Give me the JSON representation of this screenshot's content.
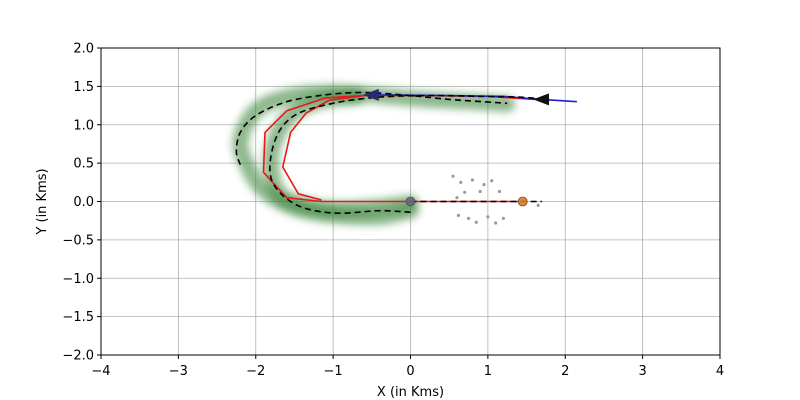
{
  "chart_data": {
    "type": "line",
    "xlabel": "X (in Kms)",
    "ylabel": "Y (in Kms)",
    "xlim": [
      -4,
      4
    ],
    "ylim": [
      -2,
      2
    ],
    "xticks": [
      -4,
      -3,
      -2,
      -1,
      0,
      1,
      2,
      3,
      4
    ],
    "yticks": [
      -2.0,
      -1.5,
      -1.0,
      -0.5,
      0.0,
      0.5,
      1.0,
      1.5,
      2.0
    ],
    "xtick_labels": [
      "−4",
      "−3",
      "−2",
      "−1",
      "0",
      "1",
      "2",
      "3",
      "4"
    ],
    "ytick_labels": [
      "−2.0",
      "−1.5",
      "−1.0",
      "−0.5",
      "0.0",
      "0.5",
      "1.0",
      "1.5",
      "2.0"
    ],
    "grid": true,
    "series": [
      {
        "style": "green-band",
        "color": "#2e7d32",
        "points": [
          [
            0.0,
            -0.12
          ],
          [
            -0.4,
            -0.2
          ],
          [
            -1.0,
            -0.18
          ],
          [
            -1.5,
            -0.08
          ],
          [
            -1.9,
            0.15
          ],
          [
            -2.1,
            0.45
          ],
          [
            -2.2,
            0.75
          ],
          [
            -2.1,
            1.05
          ],
          [
            -1.9,
            1.25
          ],
          [
            -1.5,
            1.38
          ],
          [
            -1.0,
            1.42
          ],
          [
            -0.4,
            1.38
          ],
          [
            0.2,
            1.33
          ],
          [
            0.8,
            1.3
          ],
          [
            1.25,
            1.27
          ]
        ]
      },
      {
        "style": "green-band",
        "color": "#2e7d32",
        "points": [
          [
            0.0,
            -0.02
          ],
          [
            -0.5,
            -0.08
          ],
          [
            -1.0,
            -0.1
          ],
          [
            -1.4,
            -0.04
          ],
          [
            -1.7,
            0.1
          ],
          [
            -1.8,
            0.45
          ],
          [
            -1.75,
            0.8
          ],
          [
            -1.55,
            1.12
          ],
          [
            -1.2,
            1.3
          ],
          [
            -0.7,
            1.37
          ]
        ]
      },
      {
        "style": "dashed",
        "color": "#000000",
        "points": [
          [
            0.0,
            -0.14
          ],
          [
            -0.4,
            -0.12
          ],
          [
            -1.0,
            -0.15
          ],
          [
            -1.5,
            -0.03
          ],
          [
            -1.8,
            0.3
          ],
          [
            -1.75,
            0.8
          ],
          [
            -1.5,
            1.12
          ],
          [
            -1.0,
            1.28
          ],
          [
            -0.4,
            1.36
          ],
          [
            0.3,
            1.38
          ],
          [
            0.9,
            1.37
          ],
          [
            1.4,
            1.36
          ],
          [
            1.75,
            1.33
          ]
        ]
      },
      {
        "style": "dashed",
        "color": "#000000",
        "points": [
          [
            -2.2,
            0.48
          ],
          [
            -2.25,
            0.65
          ],
          [
            -2.2,
            0.9
          ],
          [
            -2.0,
            1.12
          ],
          [
            -1.6,
            1.3
          ],
          [
            -1.1,
            1.39
          ],
          [
            -0.6,
            1.42
          ],
          [
            0.0,
            1.38
          ],
          [
            0.5,
            1.33
          ],
          [
            1.25,
            1.28
          ]
        ]
      },
      {
        "style": "dashed",
        "color": "#000000",
        "points": [
          [
            0.0,
            0.0
          ],
          [
            0.5,
            0.0
          ],
          [
            1.0,
            0.0
          ],
          [
            1.4,
            0.0
          ],
          [
            1.7,
            0.0
          ]
        ]
      },
      {
        "style": "solid",
        "color": "#e41a1c",
        "points": [
          [
            0.0,
            0.0
          ],
          [
            -0.5,
            0.0
          ],
          [
            -1.15,
            0.0
          ],
          [
            -1.6,
            0.05
          ],
          [
            -1.9,
            0.38
          ],
          [
            -1.88,
            0.9
          ],
          [
            -1.6,
            1.18
          ],
          [
            -1.1,
            1.35
          ],
          [
            -0.6,
            1.38
          ],
          [
            0.2,
            1.38
          ],
          [
            1.0,
            1.37
          ],
          [
            1.6,
            1.33
          ]
        ]
      },
      {
        "style": "solid",
        "color": "#e41a1c",
        "points": [
          [
            -1.15,
            0.02
          ],
          [
            -1.45,
            0.1
          ],
          [
            -1.65,
            0.45
          ],
          [
            -1.55,
            0.9
          ],
          [
            -1.35,
            1.15
          ],
          [
            -1.05,
            1.32
          ],
          [
            -0.6,
            1.38
          ]
        ]
      },
      {
        "style": "solid",
        "color": "#e41a1c",
        "points": [
          [
            0.0,
            0.0
          ],
          [
            0.8,
            0.0
          ],
          [
            1.4,
            0.0
          ]
        ]
      },
      {
        "style": "solid",
        "color": "#1f1fcc",
        "points": [
          [
            -0.5,
            1.39
          ],
          [
            0.5,
            1.38
          ],
          [
            1.2,
            1.37
          ],
          [
            1.7,
            1.33
          ],
          [
            2.15,
            1.3
          ]
        ]
      }
    ],
    "markers": [
      {
        "kind": "arrow-head",
        "color": "#111111",
        "x": 1.7,
        "y": 1.33,
        "direction": "left"
      },
      {
        "kind": "arrow-head",
        "color": "#2a2a6a",
        "x": -0.5,
        "y": 1.39,
        "direction": "left"
      },
      {
        "kind": "circle",
        "color": "#e07b1a",
        "x": 1.45,
        "y": 0.0
      },
      {
        "kind": "circle",
        "color": "#666677",
        "x": 0.0,
        "y": 0.0
      }
    ],
    "clutter": [
      [
        0.55,
        0.33
      ],
      [
        0.65,
        0.25
      ],
      [
        0.8,
        0.28
      ],
      [
        0.95,
        0.22
      ],
      [
        1.05,
        0.27
      ],
      [
        0.7,
        0.12
      ],
      [
        0.9,
        0.13
      ],
      [
        1.15,
        0.13
      ],
      [
        0.75,
        -0.22
      ],
      [
        0.85,
        -0.27
      ],
      [
        1.0,
        -0.2
      ],
      [
        1.1,
        -0.28
      ],
      [
        1.2,
        -0.22
      ],
      [
        0.62,
        -0.18
      ],
      [
        0.6,
        0.05
      ],
      [
        1.65,
        -0.05
      ]
    ]
  }
}
